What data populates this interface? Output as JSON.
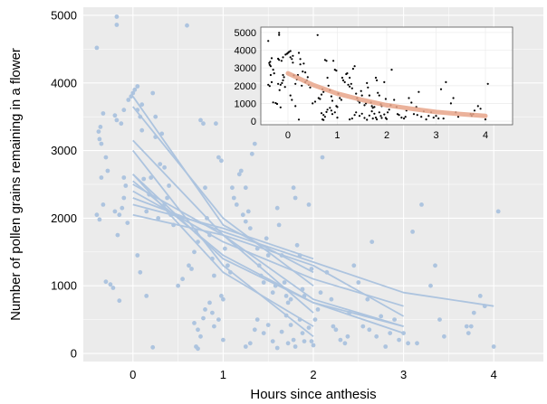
{
  "colors": {
    "panel_background": "#ebebeb",
    "grid": "#ffffff",
    "points": "#adc4df",
    "lines": "#adc4df",
    "inset_background": "#ffffff",
    "inset_points": "#000000",
    "inset_fit": "#e8a58a"
  },
  "chart_data": [
    {
      "type": "scatter",
      "title": "",
      "xlabel": "Hours since anthesis",
      "ylabel": "Number of pollen grains remaining in a flower",
      "xlim": [
        -0.55,
        4.55
      ],
      "ylim": [
        -120,
        5120
      ],
      "x_ticks": [
        0,
        1,
        2,
        3,
        4
      ],
      "y_ticks": [
        0,
        1000,
        2000,
        3000,
        4000,
        5000
      ],
      "x_tick_labels": [
        "0",
        "1",
        "2",
        "3",
        "4"
      ],
      "y_tick_labels": [
        "0",
        "1000",
        "2000",
        "3000",
        "4000",
        "5000"
      ],
      "grid": true,
      "legend": "none",
      "points": [
        [
          -0.4,
          4520
        ],
        [
          -0.38,
          3280
        ],
        [
          -0.37,
          3170
        ],
        [
          -0.36,
          3350
        ],
        [
          -0.35,
          3100
        ],
        [
          -0.33,
          3550
        ],
        [
          -0.4,
          2050
        ],
        [
          -0.37,
          1980
        ],
        [
          -0.35,
          2600
        ],
        [
          -0.33,
          2200
        ],
        [
          -0.3,
          2900
        ],
        [
          -0.28,
          2700
        ],
        [
          -0.3,
          1060
        ],
        [
          -0.25,
          1020
        ],
        [
          -0.22,
          970
        ],
        [
          -0.2,
          3520
        ],
        [
          -0.18,
          3450
        ],
        [
          -0.2,
          2100
        ],
        [
          -0.15,
          2050
        ],
        [
          -0.12,
          2150
        ],
        [
          -0.1,
          2300
        ],
        [
          -0.17,
          1750
        ],
        [
          -0.13,
          3400
        ],
        [
          -0.1,
          3600
        ],
        [
          -0.18,
          4980
        ],
        [
          -0.18,
          4860
        ],
        [
          -0.15,
          780
        ],
        [
          -0.1,
          2600
        ],
        [
          -0.08,
          2480
        ],
        [
          -0.06,
          1930
        ],
        [
          -0.05,
          3750
        ],
        [
          -0.02,
          3800
        ],
        [
          0,
          3850
        ],
        [
          0.02,
          3900
        ],
        [
          0.05,
          3950
        ],
        [
          0.05,
          3600
        ],
        [
          0.08,
          3500
        ],
        [
          0.1,
          3680
        ],
        [
          0.1,
          3300
        ],
        [
          0.12,
          2580
        ],
        [
          0.15,
          2100
        ],
        [
          0.18,
          2350
        ],
        [
          0.2,
          2600
        ],
        [
          0.22,
          3850
        ],
        [
          0.25,
          3500
        ],
        [
          0.25,
          3200
        ],
        [
          0.28,
          2000
        ],
        [
          0.3,
          2800
        ],
        [
          0.32,
          3250
        ],
        [
          0.35,
          2750
        ],
        [
          0.05,
          1450
        ],
        [
          0.08,
          1200
        ],
        [
          0.15,
          850
        ],
        [
          0.22,
          90
        ],
        [
          0.35,
          2200
        ],
        [
          0.38,
          2300
        ],
        [
          0.4,
          2480
        ],
        [
          0.42,
          2050
        ],
        [
          0.45,
          1900
        ],
        [
          0.6,
          4850
        ],
        [
          0.5,
          1000
        ],
        [
          0.55,
          1100
        ],
        [
          0.62,
          1300
        ],
        [
          0.65,
          1250
        ],
        [
          0.68,
          1500
        ],
        [
          0.7,
          1800
        ],
        [
          0.72,
          1650
        ],
        [
          0.75,
          3450
        ],
        [
          0.78,
          3400
        ],
        [
          0.8,
          2450
        ],
        [
          0.82,
          2000
        ],
        [
          0.85,
          1750
        ],
        [
          0.88,
          1400
        ],
        [
          0.9,
          1150
        ],
        [
          0.92,
          3400
        ],
        [
          0.95,
          2900
        ],
        [
          0.98,
          2850
        ],
        [
          0.68,
          450
        ],
        [
          0.72,
          350
        ],
        [
          0.75,
          250
        ],
        [
          0.78,
          520
        ],
        [
          0.7,
          100
        ],
        [
          0.72,
          70
        ],
        [
          0.8,
          650
        ],
        [
          0.85,
          750
        ],
        [
          0.88,
          600
        ],
        [
          0.9,
          400
        ],
        [
          0.95,
          500
        ],
        [
          0.98,
          850
        ],
        [
          1.0,
          800
        ],
        [
          1.0,
          200
        ],
        [
          1.02,
          1550
        ],
        [
          1.05,
          1300
        ],
        [
          1.08,
          1200
        ],
        [
          1.1,
          2450
        ],
        [
          1.12,
          2300
        ],
        [
          1.15,
          2200
        ],
        [
          1.18,
          2650
        ],
        [
          1.2,
          2700
        ],
        [
          1.25,
          2450
        ],
        [
          1.22,
          2050
        ],
        [
          1.25,
          1950
        ],
        [
          1.28,
          2100
        ],
        [
          1.3,
          1850
        ],
        [
          1.32,
          2950
        ],
        [
          1.35,
          3100
        ],
        [
          1.38,
          1550
        ],
        [
          1.4,
          1300
        ],
        [
          1.42,
          1150
        ],
        [
          1.45,
          1050
        ],
        [
          1.48,
          1700
        ],
        [
          1.5,
          1450
        ],
        [
          1.55,
          900
        ],
        [
          1.58,
          1000
        ],
        [
          1.6,
          2150
        ],
        [
          1.62,
          1900
        ],
        [
          1.65,
          1450
        ],
        [
          1.68,
          1050
        ],
        [
          1.7,
          850
        ],
        [
          1.72,
          750
        ],
        [
          1.75,
          800
        ],
        [
          1.78,
          2450
        ],
        [
          1.8,
          2300
        ],
        [
          1.82,
          1600
        ],
        [
          1.85,
          1450
        ],
        [
          1.88,
          950
        ],
        [
          1.9,
          850
        ],
        [
          1.95,
          2200
        ],
        [
          1.98,
          1250
        ],
        [
          1.25,
          100
        ],
        [
          1.3,
          150
        ],
        [
          1.35,
          350
        ],
        [
          1.38,
          500
        ],
        [
          1.45,
          300
        ],
        [
          1.5,
          420
        ],
        [
          1.55,
          180
        ],
        [
          1.6,
          80
        ],
        [
          1.65,
          320
        ],
        [
          1.7,
          560
        ],
        [
          1.72,
          150
        ],
        [
          1.75,
          420
        ],
        [
          1.78,
          200
        ],
        [
          1.8,
          100
        ],
        [
          1.85,
          500
        ],
        [
          1.88,
          300
        ],
        [
          1.9,
          180
        ],
        [
          1.95,
          380
        ],
        [
          1.98,
          180
        ],
        [
          2.0,
          120
        ],
        [
          2.02,
          500
        ],
        [
          2.05,
          650
        ],
        [
          2.08,
          900
        ],
        [
          2.1,
          2900
        ],
        [
          2.15,
          1200
        ],
        [
          2.2,
          800
        ],
        [
          2.22,
          400
        ],
        [
          2.25,
          350
        ],
        [
          2.3,
          200
        ],
        [
          2.35,
          150
        ],
        [
          2.38,
          250
        ],
        [
          2.4,
          600
        ],
        [
          2.45,
          1300
        ],
        [
          2.5,
          1050
        ],
        [
          2.55,
          400
        ],
        [
          2.6,
          800
        ],
        [
          2.62,
          350
        ],
        [
          2.65,
          1650
        ],
        [
          2.7,
          250
        ],
        [
          2.75,
          550
        ],
        [
          2.8,
          100
        ],
        [
          2.85,
          300
        ],
        [
          2.9,
          500
        ],
        [
          2.95,
          200
        ],
        [
          3.0,
          300
        ],
        [
          3.05,
          150
        ],
        [
          3.1,
          1800
        ],
        [
          3.15,
          150
        ],
        [
          3.2,
          2200
        ],
        [
          3.3,
          1000
        ],
        [
          3.35,
          1300
        ],
        [
          3.4,
          500
        ],
        [
          3.45,
          250
        ],
        [
          3.7,
          400
        ],
        [
          3.72,
          300
        ],
        [
          3.75,
          400
        ],
        [
          3.78,
          600
        ],
        [
          3.85,
          850
        ],
        [
          3.9,
          700
        ],
        [
          4.0,
          100
        ],
        [
          4.05,
          2100
        ]
      ],
      "series": [
        {
          "x": [
            0,
            1,
            2
          ],
          "values": [
            3800,
            1900,
            1200
          ]
        },
        {
          "x": [
            0,
            1,
            2
          ],
          "values": [
            3650,
            2000,
            1000
          ]
        },
        {
          "x": [
            0,
            1,
            2
          ],
          "values": [
            3150,
            1750,
            600
          ]
        },
        {
          "x": [
            0,
            1,
            2
          ],
          "values": [
            3000,
            1300,
            250
          ]
        },
        {
          "x": [
            0,
            1,
            2,
            3
          ],
          "values": [
            2650,
            1400,
            750,
            400
          ]
        },
        {
          "x": [
            0,
            1,
            2,
            3
          ],
          "values": [
            2550,
            1450,
            750,
            300
          ]
        },
        {
          "x": [
            0,
            1,
            2,
            3
          ],
          "values": [
            2500,
            1750,
            1300,
            550
          ]
        },
        {
          "x": [
            0,
            1,
            2,
            3
          ],
          "values": [
            2400,
            1650,
            1100,
            700
          ]
        },
        {
          "x": [
            0,
            1,
            2,
            3,
            4
          ],
          "values": [
            2300,
            1800,
            1350,
            900,
            700
          ]
        },
        {
          "x": [
            0,
            1,
            2
          ],
          "values": [
            2200,
            1850,
            1400
          ]
        },
        {
          "x": [
            0,
            1,
            2,
            3
          ],
          "values": [
            2050,
            1750,
            800,
            400
          ]
        },
        {
          "x": [
            0,
            1,
            2
          ],
          "values": [
            2650,
            1200,
            400
          ]
        }
      ]
    },
    {
      "type": "scatter",
      "title": "",
      "xlabel": "",
      "ylabel": "",
      "xlim": [
        -0.55,
        4.55
      ],
      "ylim": [
        -200,
        5300
      ],
      "x_ticks": [
        0,
        1,
        2,
        3,
        4
      ],
      "y_ticks": [
        0,
        1000,
        2000,
        3000,
        4000,
        5000
      ],
      "x_tick_labels": [
        "0",
        "1",
        "2",
        "3",
        "4"
      ],
      "y_tick_labels": [
        "0",
        "1000",
        "2000",
        "3000",
        "4000",
        "5000"
      ],
      "grid": true,
      "legend": "none",
      "fit": {
        "x": [
          0,
          0.5,
          1,
          1.5,
          2,
          2.5,
          3,
          3.5,
          4
        ],
        "values": [
          2700,
          2050,
          1550,
          1200,
          900,
          700,
          520,
          400,
          300
        ]
      }
    }
  ]
}
